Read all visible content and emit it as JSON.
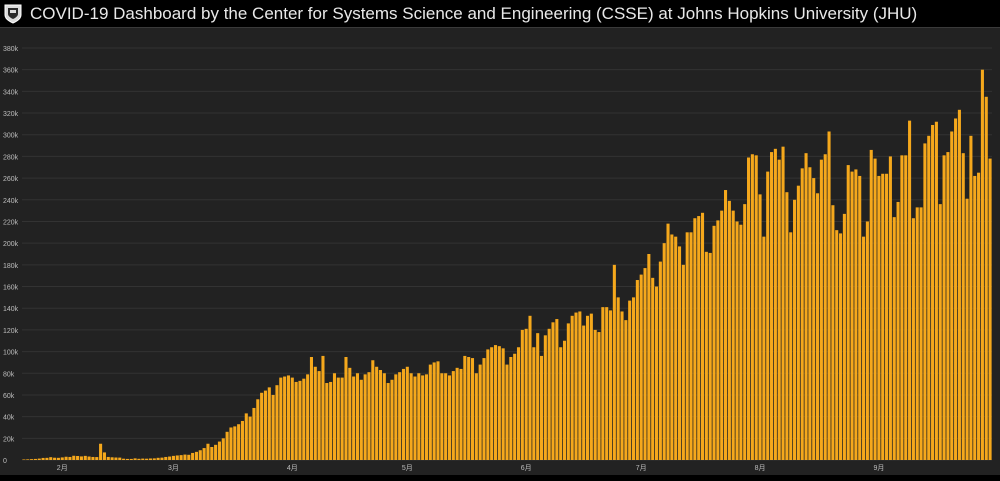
{
  "header": {
    "title": "COVID-19 Dashboard by the Center for Systems Science and Engineering (CSSE) at Johns Hopkins University (JHU)"
  },
  "colors": {
    "bar": "#f5a81c",
    "background": "#222222",
    "header_bg": "#000000",
    "grid": "#333333",
    "text": "#bdbdbd"
  },
  "chart_data": {
    "type": "bar",
    "title": "",
    "xlabel": "",
    "ylabel": "",
    "ylim": [
      0,
      380000
    ],
    "yticks": [
      0,
      20000,
      40000,
      60000,
      80000,
      100000,
      120000,
      140000,
      160000,
      180000,
      200000,
      220000,
      240000,
      260000,
      280000,
      300000,
      320000,
      340000,
      360000,
      380000
    ],
    "ytick_labels": [
      "0",
      "20k",
      "40k",
      "60k",
      "80k",
      "100k",
      "120k",
      "140k",
      "160k",
      "180k",
      "200k",
      "220k",
      "240k",
      "260k",
      "280k",
      "300k",
      "320k",
      "340k",
      "360k",
      "380k"
    ],
    "xtick_labels": [
      "2月",
      "3月",
      "4月",
      "5月",
      "6月",
      "7月",
      "8月",
      "9月"
    ],
    "xtick_positions": [
      10,
      39,
      70,
      100,
      131,
      161,
      192,
      223
    ],
    "values": [
      500,
      600,
      800,
      1000,
      1300,
      1900,
      2000,
      2600,
      2100,
      2000,
      2400,
      3000,
      2800,
      3900,
      3700,
      3300,
      3800,
      3200,
      2800,
      2700,
      15000,
      7000,
      2800,
      2500,
      2300,
      2200,
      1200,
      1000,
      1000,
      1500,
      1100,
      1300,
      1200,
      1400,
      1500,
      2000,
      2200,
      2800,
      3200,
      3800,
      4200,
      4500,
      5000,
      4800,
      6500,
      7500,
      9000,
      11000,
      15000,
      12000,
      14000,
      17000,
      20000,
      26000,
      30000,
      31000,
      33000,
      36000,
      43000,
      40000,
      48000,
      56000,
      62000,
      64000,
      67000,
      60000,
      69000,
      76000,
      77000,
      78000,
      76000,
      72000,
      73000,
      75000,
      79000,
      95000,
      86000,
      82000,
      96000,
      71000,
      72000,
      80000,
      76000,
      76000,
      95000,
      85000,
      77000,
      80000,
      74000,
      79000,
      81000,
      92000,
      86000,
      83000,
      80000,
      71000,
      74000,
      79000,
      81000,
      84000,
      86000,
      80000,
      77000,
      80000,
      78000,
      79000,
      88000,
      90000,
      91000,
      80000,
      80000,
      78000,
      82000,
      85000,
      84000,
      96000,
      95000,
      94000,
      80000,
      88000,
      94000,
      102000,
      104000,
      106000,
      105000,
      103000,
      88000,
      95000,
      98000,
      104000,
      120000,
      121000,
      133000,
      104000,
      117000,
      96000,
      115000,
      121000,
      127000,
      130000,
      104000,
      110000,
      126000,
      133000,
      136000,
      137000,
      124000,
      133000,
      135000,
      120000,
      118000,
      141000,
      141000,
      138000,
      180000,
      150000,
      137000,
      129000,
      147000,
      150000,
      166000,
      171000,
      177000,
      190000,
      168000,
      160000,
      183000,
      200000,
      218000,
      208000,
      206000,
      197000,
      180000,
      210000,
      210000,
      223000,
      225000,
      228000,
      192000,
      191000,
      216000,
      221000,
      230000,
      249000,
      239000,
      230000,
      220000,
      217000,
      236000,
      279000,
      282000,
      281000,
      245000,
      206000,
      266000,
      284000,
      287000,
      277000,
      289000,
      247000,
      210000,
      240000,
      253000,
      269000,
      283000,
      270000,
      260000,
      246000,
      277000,
      282000,
      303000,
      235000,
      212000,
      209000,
      227000,
      272000,
      266000,
      268000,
      262000,
      206000,
      220000,
      286000,
      278000,
      262000,
      264000,
      264000,
      280000,
      224000,
      238000,
      281000,
      281000,
      313000,
      223000,
      233000,
      233000,
      292000,
      299000,
      309000,
      312000,
      236000,
      281000,
      284000,
      303000,
      315000,
      323000,
      283000,
      241000,
      299000,
      262000,
      265000,
      360000,
      335000,
      278000
    ]
  }
}
